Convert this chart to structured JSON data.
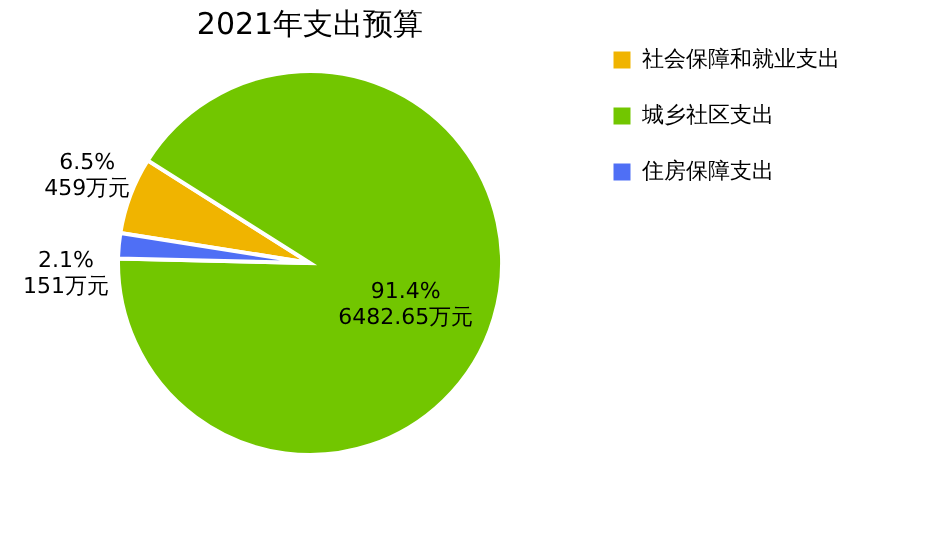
{
  "chart_data": {
    "type": "pie",
    "title": "2021年支出预算",
    "categories": [
      "社会保障和就业支出",
      "城乡社区支出",
      "住房保障支出"
    ],
    "values": [
      459,
      6482.65,
      151
    ],
    "colors": [
      "#f0b400",
      "#72c600",
      "#4f6ff5"
    ],
    "value_labels": [
      "6.5%\n459万元",
      "91.4%\n6482.65万元",
      "2.1%\n151万元"
    ],
    "legend": "right"
  }
}
